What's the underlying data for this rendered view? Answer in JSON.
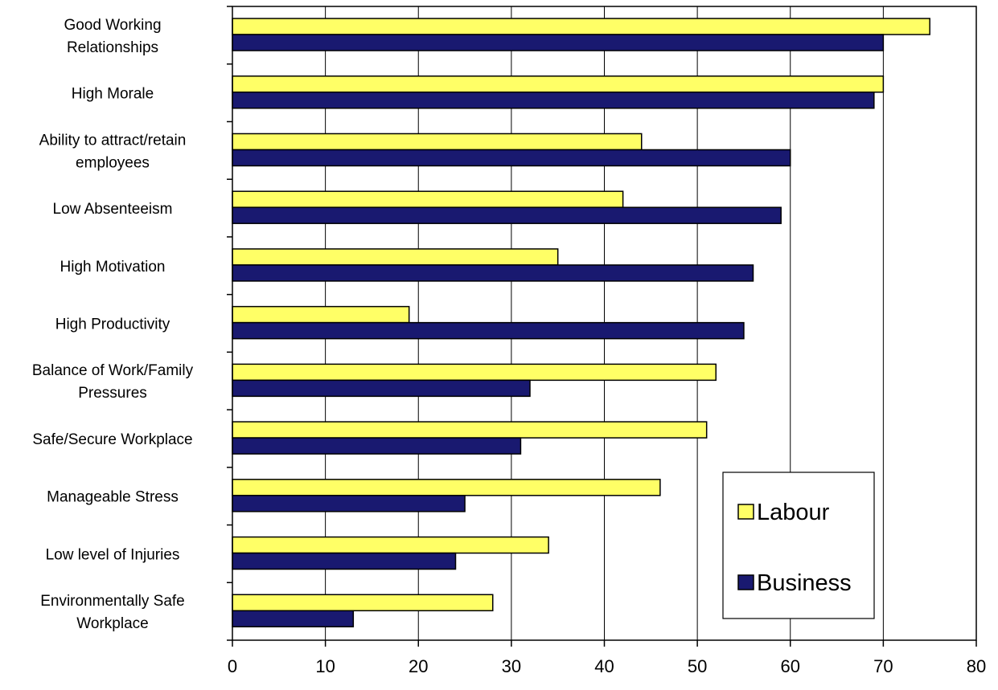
{
  "chart_data": {
    "type": "bar",
    "orientation": "horizontal",
    "categories": [
      [
        "Good Working",
        "Relationships"
      ],
      [
        "High Morale"
      ],
      [
        "Ability to attract/retain",
        "employees"
      ],
      [
        "Low Absenteeism"
      ],
      [
        "High Motivation"
      ],
      [
        "High Productivity"
      ],
      [
        "Balance of Work/Family",
        "Pressures"
      ],
      [
        "Safe/Secure Workplace"
      ],
      [
        "Manageable Stress"
      ],
      [
        "Low level of Injuries"
      ],
      [
        "Environmentally Safe",
        "Workplace"
      ]
    ],
    "series": [
      {
        "name": "Labour",
        "color": "#ffff66",
        "values": [
          75,
          70,
          44,
          42,
          35,
          19,
          52,
          51,
          46,
          34,
          28
        ]
      },
      {
        "name": "Business",
        "color": "#191970",
        "values": [
          70,
          69,
          60,
          59,
          56,
          55,
          32,
          31,
          25,
          24,
          13
        ]
      }
    ],
    "xlim": [
      0,
      80
    ],
    "xticks": [
      0,
      10,
      20,
      30,
      40,
      50,
      60,
      70,
      80
    ],
    "grid": "vertical",
    "legend_position": "bottom-right",
    "title": "",
    "xlabel": "",
    "ylabel": ""
  }
}
